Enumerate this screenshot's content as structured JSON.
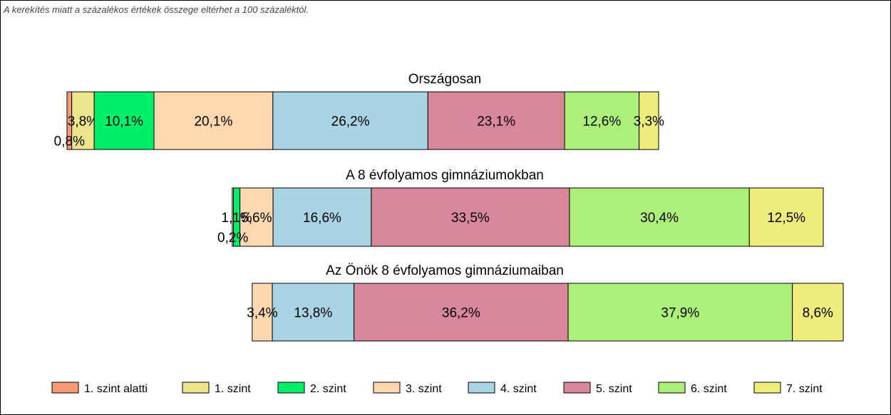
{
  "note": "A kerekítés miatt a  százalékos értékek összege eltérhet a 100 százaléktól.",
  "chart_data": {
    "type": "bar",
    "orientation": "horizontal",
    "stacked": true,
    "unit": "%",
    "categories": [
      "1. szint alatti",
      "1. szint",
      "2. szint",
      "3. szint",
      "4. szint",
      "5. szint",
      "6. szint",
      "7. szint"
    ],
    "colors": [
      "#f79a76",
      "#eee48c",
      "#00ee6a",
      "#ffd8b0",
      "#a8d4e4",
      "#d8889a",
      "#acf07a",
      "#eeec7a"
    ],
    "legend_position": "bottom",
    "bars": [
      {
        "title": "Országosan",
        "values": [
          0.8,
          3.8,
          10.1,
          20.1,
          26.2,
          23.1,
          12.6,
          3.3
        ],
        "labels": [
          "0,8%",
          "3,8%",
          "10,1%",
          "20,1%",
          "26,2%",
          "23,1%",
          "12,6%",
          "3,3%"
        ]
      },
      {
        "title": "A 8 évfolyamos gimnáziumokban",
        "values": [
          0.0,
          0.2,
          1.1,
          5.6,
          16.6,
          33.5,
          30.4,
          12.5
        ],
        "labels": [
          "",
          "0,2%",
          "1,1%",
          "5,6%",
          "16,6%",
          "33,5%",
          "30,4%",
          "12,5%"
        ]
      },
      {
        "title": "Az Önök 8 évfolyamos gimnáziumaiban",
        "values": [
          0.0,
          0.0,
          0.0,
          3.4,
          13.8,
          36.2,
          37.9,
          8.6
        ],
        "labels": [
          "",
          "",
          "",
          "3,4%",
          "13,8%",
          "36,2%",
          "37,9%",
          "8,6%"
        ]
      }
    ]
  }
}
